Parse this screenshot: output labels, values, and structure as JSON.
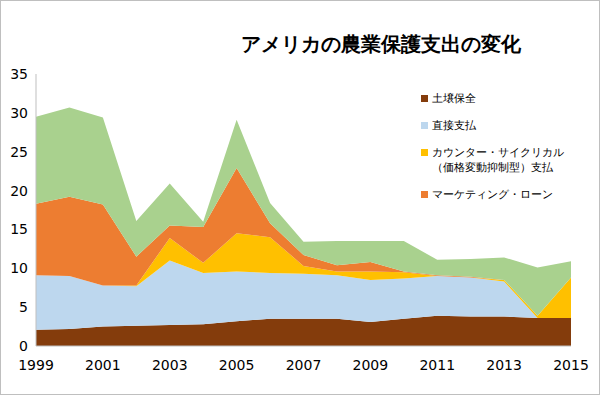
{
  "chart_data": {
    "type": "area",
    "stacked": true,
    "title": "アメリカの農業保護支出の変化",
    "x": [
      1999,
      2000,
      2001,
      2002,
      2003,
      2004,
      2005,
      2006,
      2007,
      2008,
      2009,
      2010,
      2011,
      2012,
      2013,
      2014,
      2015
    ],
    "series": [
      {
        "name": "土壌保全",
        "color": "#843c0c",
        "values": [
          2.1,
          2.2,
          2.5,
          2.6,
          2.7,
          2.8,
          3.2,
          3.5,
          3.5,
          3.5,
          3.1,
          3.5,
          3.9,
          3.8,
          3.8,
          3.6,
          3.6
        ]
      },
      {
        "name": "直接支払",
        "color": "#bdd7ee",
        "values": [
          7.0,
          6.8,
          5.3,
          5.1,
          8.3,
          6.6,
          6.4,
          5.9,
          5.8,
          5.6,
          5.4,
          5.2,
          5.1,
          5.0,
          4.5,
          0,
          0
        ]
      },
      {
        "name": "カウンター・サイクリカル（価格変動抑制型）支払",
        "color": "#ffc000",
        "values": [
          0,
          0,
          0,
          0.1,
          2.9,
          1.3,
          4.9,
          4.6,
          1.0,
          0.5,
          1.1,
          0.8,
          0,
          0,
          0.2,
          0.3,
          5.2
        ]
      },
      {
        "name": "マーケティング・ローン",
        "color": "#ed7d31",
        "values": [
          9.2,
          10.2,
          10.4,
          3.7,
          1.6,
          4.6,
          8.4,
          1.8,
          1.4,
          0.8,
          1.2,
          0.1,
          0.1,
          0.1,
          0,
          0,
          0
        ]
      },
      {
        "color": "#a9d18e",
        "values": [
          11.2,
          11.5,
          11.2,
          4.6,
          5.4,
          0.7,
          6.2,
          2.6,
          1.7,
          3.1,
          2.7,
          3.9,
          2.0,
          2.3,
          2.9,
          6.2,
          2.1
        ]
      }
    ],
    "xlim": [
      1999,
      2015
    ],
    "xticks": [
      1999,
      2001,
      2003,
      2005,
      2007,
      2009,
      2011,
      2013,
      2015
    ],
    "ylim": [
      0,
      35
    ],
    "yticks": [
      0,
      5,
      10,
      15,
      20,
      25,
      30,
      35
    ],
    "grid": false,
    "legend": "upper right"
  }
}
